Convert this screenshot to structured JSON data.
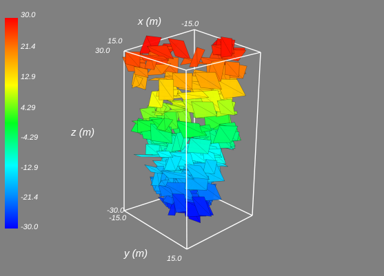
{
  "chart_data": {
    "type": "scatter",
    "render_style": "3d-surface-fractures",
    "colormap": "rainbow",
    "axes": {
      "x": {
        "label": "x (m)",
        "tick_labels": [
          "-15.0",
          "15.0"
        ],
        "range": [
          -15.0,
          15.0
        ]
      },
      "y": {
        "label": "y (m)",
        "tick_labels": [
          "-15.0",
          "15.0"
        ],
        "range": [
          -15.0,
          15.0
        ]
      },
      "z": {
        "label": "z (m)",
        "tick_labels": [
          "-30.0",
          "30.0"
        ],
        "range": [
          -30.0,
          30.0
        ]
      }
    },
    "colorbar": {
      "tick_labels": [
        "30.0",
        "21.4",
        "12.9",
        "4.29",
        "-4.29",
        "-12.9",
        "-21.4",
        "-30.0"
      ],
      "range": [
        -30.0,
        30.0
      ],
      "placement": "left"
    },
    "colors": {
      "background": "#808080",
      "bounding_box": "#ffffff",
      "colormap_stops": [
        "#0000ff",
        "#00a0ff",
        "#00ffff",
        "#00ff40",
        "#ffff00",
        "#ff8000",
        "#ff0000"
      ]
    }
  }
}
